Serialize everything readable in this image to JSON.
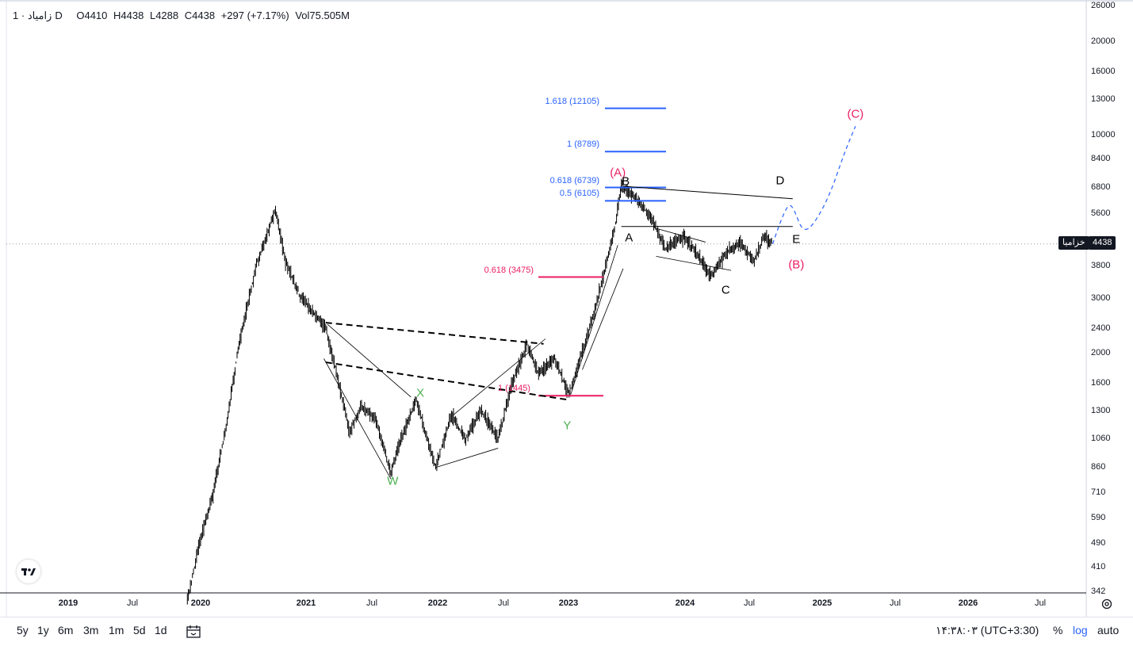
{
  "legend": {
    "symbol": "زامیاد",
    "interval": "· 1D",
    "open": "O4410",
    "high": "H4438",
    "low": "L4288",
    "close": "C4438",
    "change": "+297 (+7.17%)",
    "volume": "Vol75.505M"
  },
  "colors": {
    "candle": "#000000",
    "fib_blue": "#2962ff",
    "fib_red": "#e91e63",
    "wave_green": "#4caf50",
    "wave_pink": "#e91e63",
    "wave_black": "#000000",
    "projection": "#2962ff"
  },
  "price_axis": {
    "scale": "log",
    "ticks": [
      "26000",
      "20000",
      "16000",
      "13000",
      "10000",
      "8400",
      "6800",
      "5600",
      "3800",
      "3000",
      "2400",
      "2000",
      "1600",
      "1300",
      "1060",
      "860",
      "710",
      "590",
      "490",
      "410",
      "342"
    ],
    "current_price": "4438",
    "current_label": "خزامیا"
  },
  "time_axis": {
    "ticks": [
      {
        "label": "2019",
        "major": true
      },
      {
        "label": "Jul",
        "major": false
      },
      {
        "label": "2020",
        "major": true
      },
      {
        "label": "2021",
        "major": true
      },
      {
        "label": "Jul",
        "major": false
      },
      {
        "label": "2022",
        "major": true
      },
      {
        "label": "Jul",
        "major": false
      },
      {
        "label": "2023",
        "major": true
      },
      {
        "label": "2024",
        "major": true
      },
      {
        "label": "Jul",
        "major": false
      },
      {
        "label": "2025",
        "major": true
      },
      {
        "label": "Jul",
        "major": false
      },
      {
        "label": "2026",
        "major": true
      },
      {
        "label": "Jul",
        "major": false
      }
    ]
  },
  "chart_data": {
    "type": "candlestick",
    "title": "",
    "yscale": "log",
    "ylim": [
      335,
      27000
    ],
    "xlim": [
      "2018-11",
      "2026-09"
    ],
    "grid": false,
    "path": [
      [
        "2019-11-25",
        320
      ],
      [
        "2020-01-01",
        500
      ],
      [
        "2020-02-05",
        700
      ],
      [
        "2020-03-15",
        1200
      ],
      [
        "2020-04-20",
        2200
      ],
      [
        "2020-06-05",
        3800
      ],
      [
        "2020-07-28",
        5700
      ],
      [
        "2020-08-25",
        3900
      ],
      [
        "2020-10-05",
        3000
      ],
      [
        "2020-12-15",
        2400
      ],
      [
        "2021-01-25",
        1500
      ],
      [
        "2021-02-20",
        1100
      ],
      [
        "2021-03-25",
        1350
      ],
      [
        "2021-05-05",
        1200
      ],
      [
        "2021-06-15",
        820
      ],
      [
        "2021-07-10",
        1020
      ],
      [
        "2021-08-25",
        1400
      ],
      [
        "2021-10-18",
        850
      ],
      [
        "2021-12-01",
        1250
      ],
      [
        "2022-01-10",
        1050
      ],
      [
        "2022-02-20",
        1300
      ],
      [
        "2022-04-10",
        1050
      ],
      [
        "2022-05-20",
        1600
      ],
      [
        "2022-06-30",
        2100
      ],
      [
        "2022-08-01",
        1700
      ],
      [
        "2022-09-15",
        1900
      ],
      [
        "2022-10-25",
        1450
      ],
      [
        "2022-12-01",
        2000
      ],
      [
        "2023-01-05",
        2700
      ],
      [
        "2023-02-01",
        3600
      ],
      [
        "2023-03-01",
        5000
      ],
      [
        "2023-03-20",
        6800
      ],
      [
        "2023-05-01",
        6200
      ],
      [
        "2023-06-15",
        5300
      ],
      [
        "2023-07-20",
        4300
      ],
      [
        "2023-09-10",
        4700
      ],
      [
        "2023-10-25",
        4000
      ],
      [
        "2023-11-25",
        3500
      ],
      [
        "2024-01-10",
        4200
      ],
      [
        "2024-02-15",
        4500
      ],
      [
        "2024-03-25",
        3900
      ],
      [
        "2024-04-20",
        4700
      ],
      [
        "2024-05-15",
        4438
      ]
    ],
    "last": {
      "open": 4410,
      "high": 4438,
      "low": 4288,
      "close": 4438,
      "change": "+297 (+7.17%)",
      "volume": "75.505M"
    },
    "fib_levels": [
      {
        "label": "1.618 (12105)",
        "value": 12105,
        "color": "blue"
      },
      {
        "label": "1 (8789)",
        "value": 8789,
        "color": "blue"
      },
      {
        "label": "0.618 (6739)",
        "value": 6739,
        "color": "blue"
      },
      {
        "label": "0.5 (6105)",
        "value": 6105,
        "color": "blue"
      },
      {
        "label": "0.618 (3475)",
        "value": 3475,
        "color": "red"
      },
      {
        "label": "1 (1445)",
        "value": 1445,
        "color": "red"
      }
    ],
    "wave_labels": [
      {
        "text": "W",
        "date": "2021-06-20",
        "value": 770,
        "color": "green"
      },
      {
        "text": "X",
        "date": "2021-09-05",
        "value": 1470,
        "color": "green"
      },
      {
        "text": "Y",
        "date": "2022-10-20",
        "value": 1160,
        "color": "green"
      },
      {
        "text": "(A)",
        "date": "2023-03-10",
        "value": 7500,
        "color": "pink"
      },
      {
        "text": "B",
        "date": "2023-04-01",
        "value": 7050,
        "color": "black"
      },
      {
        "text": "A",
        "date": "2023-04-10",
        "value": 4640,
        "color": "black"
      },
      {
        "text": "C",
        "date": "2024-01-05",
        "value": 3150,
        "color": "black"
      },
      {
        "text": "D",
        "date": "2024-06-05",
        "value": 7100,
        "color": "black"
      },
      {
        "text": "E",
        "date": "2024-07-20",
        "value": 4600,
        "color": "black"
      },
      {
        "text": "(B)",
        "date": "2024-07-20",
        "value": 3800,
        "color": "pink"
      },
      {
        "text": "(C)",
        "date": "2025-01-01",
        "value": 11600,
        "color": "pink"
      }
    ],
    "projection": [
      [
        "2024-05-15",
        4438
      ],
      [
        "2024-06-10",
        5400
      ],
      [
        "2024-06-30",
        6000
      ],
      [
        "2024-07-15",
        5700
      ],
      [
        "2024-08-05",
        4900
      ],
      [
        "2024-09-01",
        5000
      ],
      [
        "2024-10-20",
        6300
      ],
      [
        "2024-12-01",
        8700
      ],
      [
        "2025-01-01",
        10600
      ]
    ],
    "trendlines": [
      {
        "style": "dashed",
        "from": [
          "2020-12-15",
          2480
        ],
        "to": [
          "2022-08-15",
          2120
        ]
      },
      {
        "style": "dashed",
        "from": [
          "2020-12-15",
          1850
        ],
        "to": [
          "2022-10-25",
          1400
        ]
      },
      {
        "style": "solid",
        "from": [
          "2023-03-25",
          6800
        ],
        "to": [
          "2024-07-10",
          6200
        ]
      },
      {
        "style": "solid",
        "from": [
          "2023-03-20",
          5050
        ],
        "to": [
          "2024-07-10",
          5050
        ]
      }
    ]
  },
  "bottom_bar": {
    "ranges": [
      "5y",
      "1y",
      "6m",
      "3m",
      "1m",
      "5d",
      "1d"
    ],
    "time": "۱۴:۳۸:۰۳ (UTC+3:30)",
    "percent": "%",
    "log": "log",
    "auto": "auto"
  }
}
